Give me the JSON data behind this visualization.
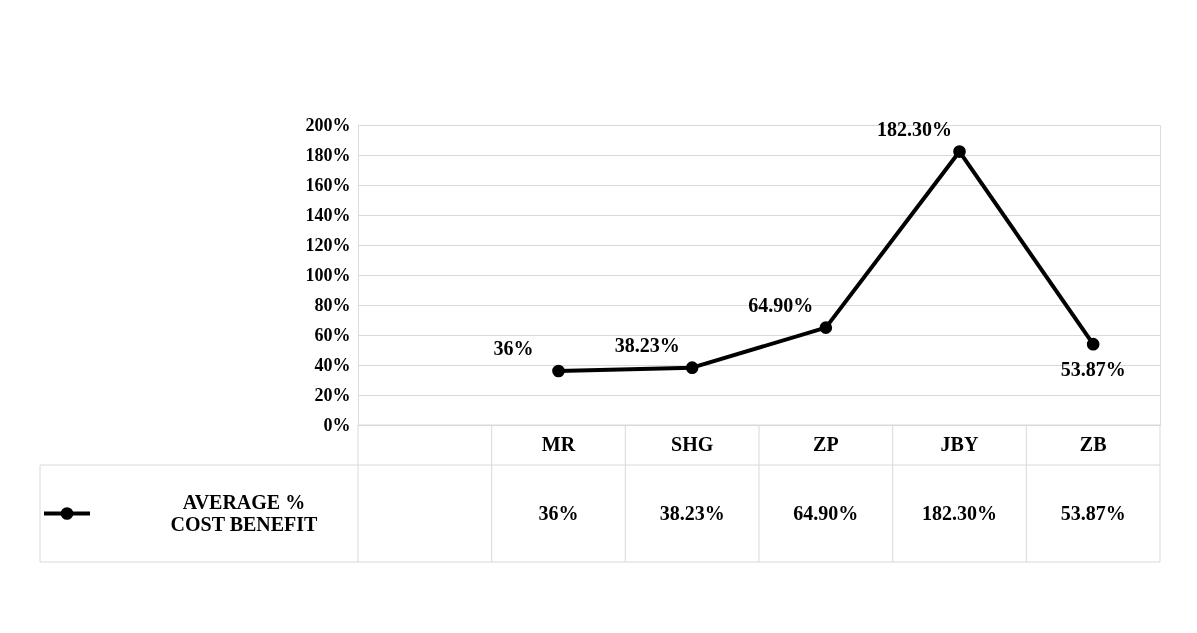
{
  "chart_data": {
    "type": "line",
    "categories": [
      null,
      "MR",
      "SHG",
      "ZP",
      "JBY",
      "ZB"
    ],
    "series": [
      {
        "name": "AVERAGE % COST BENEFIT",
        "color": "#000000",
        "values": [
          null,
          36,
          38.23,
          64.9,
          182.3,
          53.87
        ],
        "value_labels": [
          null,
          "36%",
          "38.23%",
          "64.90%",
          "182.30%",
          "53.87%"
        ]
      }
    ],
    "ylim": [
      0,
      200
    ],
    "yticks": [
      {
        "value": 0,
        "label": "0%"
      },
      {
        "value": 20,
        "label": "20%"
      },
      {
        "value": 40,
        "label": "40%"
      },
      {
        "value": 60,
        "label": "60%"
      },
      {
        "value": 80,
        "label": "80%"
      },
      {
        "value": 100,
        "label": "100%"
      },
      {
        "value": 120,
        "label": "120%"
      },
      {
        "value": 140,
        "label": "140%"
      },
      {
        "value": 160,
        "label": "160%"
      },
      {
        "value": 180,
        "label": "180%"
      },
      {
        "value": 200,
        "label": "200%"
      }
    ],
    "grid": "y",
    "marker": "circle",
    "line_style": "solid",
    "legend": "bottom left"
  }
}
